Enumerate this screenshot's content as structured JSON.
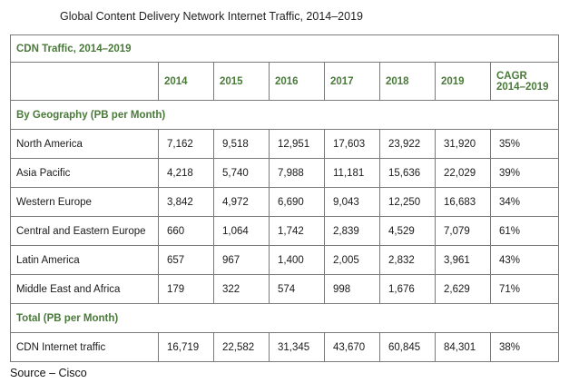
{
  "title": "Global Content Delivery Network Internet Traffic, 2014–2019",
  "table": {
    "caption": "CDN Traffic, 2014–2019",
    "columns": [
      "2014",
      "2015",
      "2016",
      "2017",
      "2018",
      "2019"
    ],
    "cagr_header": [
      "CAGR",
      "2014–2019"
    ],
    "sections": [
      {
        "label": "By Geography (PB per Month)",
        "rows": [
          {
            "name": "North America",
            "values": [
              "7,162",
              "9,518",
              "12,951",
              "17,603",
              "23,922",
              "31,920",
              "35%"
            ]
          },
          {
            "name": "Asia Pacific",
            "values": [
              "4,218",
              "5,740",
              "7,988",
              "11,181",
              "15,636",
              "22,029",
              "39%"
            ]
          },
          {
            "name": "Western Europe",
            "values": [
              "3,842",
              "4,972",
              "6,690",
              "9,043",
              "12,250",
              "16,683",
              "34%"
            ]
          },
          {
            "name": "Central and Eastern Europe",
            "values": [
              "660",
              "1,064",
              "1,742",
              "2,839",
              "4,529",
              "7,079",
              "61%"
            ]
          },
          {
            "name": "Latin America",
            "values": [
              "657",
              "967",
              "1,400",
              "2,005",
              "2,832",
              "3,961",
              "43%"
            ]
          },
          {
            "name": "Middle East and Africa",
            "values": [
              "179",
              "322",
              "574",
              "998",
              "1,676",
              "2,629",
              "71%"
            ]
          }
        ]
      },
      {
        "label": "Total (PB per Month)",
        "rows": [
          {
            "name": "CDN Internet traffic",
            "values": [
              "16,719",
              "22,582",
              "31,345",
              "43,670",
              "60,845",
              "84,301",
              "38%"
            ]
          }
        ]
      }
    ]
  },
  "source": "Source – Cisco"
}
